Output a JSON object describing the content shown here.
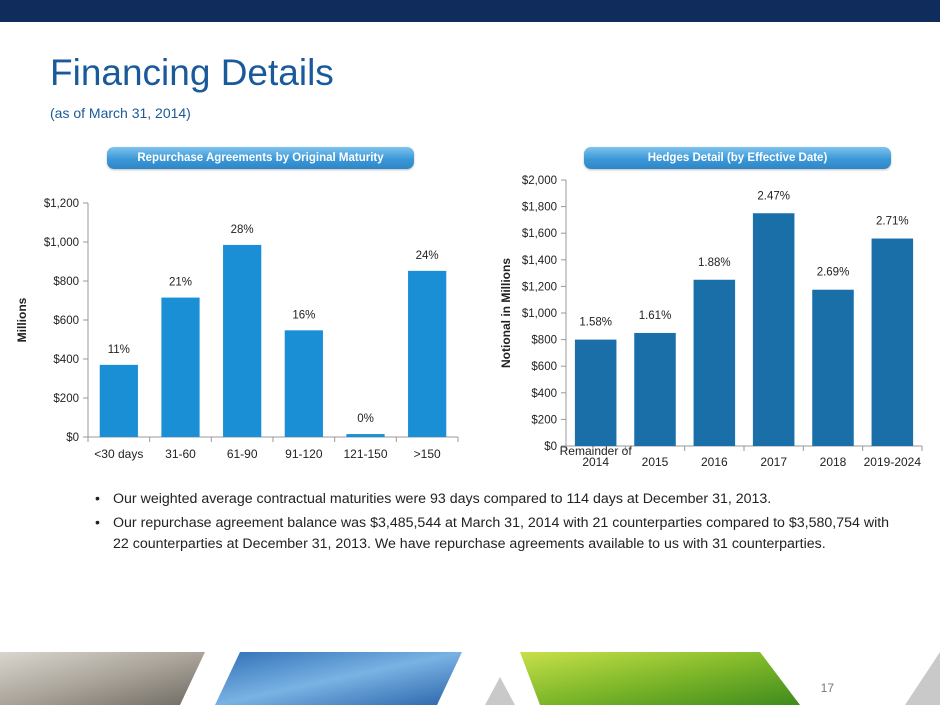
{
  "header": {
    "title": "Financing Details",
    "subtitle": "(as of March 31, 2014)"
  },
  "left_chart_label": "Repurchase Agreements by Original Maturity",
  "right_chart_label": "Hedges Detail (by Effective Date)",
  "chart_data": [
    {
      "type": "bar",
      "title": "Repurchase Agreements by Original Maturity",
      "categories": [
        "<30 days",
        "31-60",
        "61-90",
        "91-120",
        "121-150",
        ">150"
      ],
      "values": [
        370,
        715,
        985,
        547,
        15,
        852
      ],
      "data_labels": [
        "11%",
        "21%",
        "28%",
        "16%",
        "0%",
        "24%"
      ],
      "ylabel": "Millions",
      "ylim": [
        0,
        1200
      ],
      "yticks": [
        0,
        200,
        400,
        600,
        800,
        1000,
        1200
      ],
      "ytick_labels": [
        "$0",
        "$200",
        "$400",
        "$600",
        "$800",
        "$1,000",
        "$1,200"
      ],
      "color": "#1a8fd6",
      "grid": false
    },
    {
      "type": "bar",
      "title": "Hedges Detail (by Effective Date)",
      "categories": [
        [
          "Remainder of",
          "2014"
        ],
        [
          "2015"
        ],
        [
          "2016"
        ],
        [
          "2017"
        ],
        [
          "2018"
        ],
        [
          "2019-2024"
        ]
      ],
      "values": [
        800,
        850,
        1250,
        1750,
        1175,
        1560
      ],
      "data_labels": [
        "1.58%",
        "1.61%",
        "1.88%",
        "2.47%",
        "2.69%",
        "2.71%"
      ],
      "ylabel": "Notional in Millions",
      "ylim": [
        0,
        2000
      ],
      "yticks": [
        0,
        200,
        400,
        600,
        800,
        1000,
        1200,
        1400,
        1600,
        1800,
        2000
      ],
      "ytick_labels": [
        "$0",
        "$200",
        "$400",
        "$600",
        "$800",
        "$1,000",
        "$1,200",
        "$1,400",
        "$1,600",
        "$1,800",
        "$2,000"
      ],
      "color": "#1a6fa8",
      "grid": false
    }
  ],
  "bullets": [
    "Our weighted average contractual maturities were 93 days compared to 114 days at December 31, 2013.",
    "Our repurchase agreement balance was $3,485,544  at March 31, 2014 with 21 counterparties compared to $3,580,754 with 22 counterparties at December 31, 2013.  We have repurchase agreements available to us with 31 counterparties."
  ],
  "bullet_symbol": "•",
  "page_number": "17"
}
